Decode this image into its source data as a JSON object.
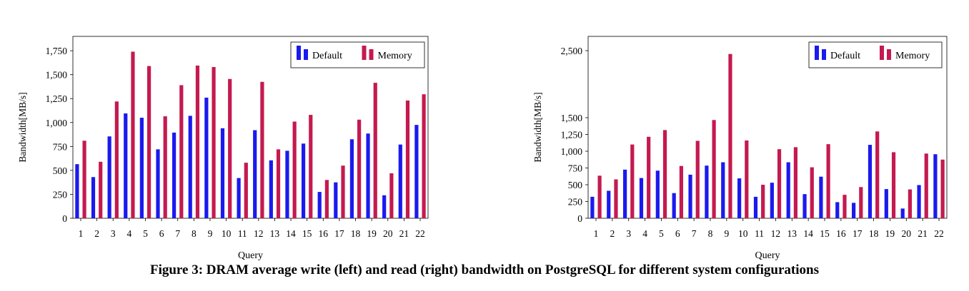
{
  "caption": "Figure 3: DRAM average write (left) and read (right) bandwidth on PostgreSQL for different system configurations",
  "colors": {
    "Default": "#1a1aee",
    "Memory": "#c41a4f"
  },
  "chart_data": [
    {
      "type": "bar",
      "xlabel": "Query",
      "ylabel": "Bandwidth[MB/s]",
      "ylim": [
        0,
        1900
      ],
      "yticks": [
        0,
        250,
        500,
        750,
        1000,
        1250,
        1500,
        1750
      ],
      "ytick_labels": [
        "0",
        "250",
        "500",
        "750",
        "1,000",
        "1,250",
        "1,500",
        "1,750"
      ],
      "grid": false,
      "legend_position": "top-right",
      "categories": [
        "1",
        "2",
        "3",
        "4",
        "5",
        "6",
        "7",
        "8",
        "9",
        "10",
        "11",
        "12",
        "13",
        "14",
        "15",
        "16",
        "17",
        "18",
        "19",
        "20",
        "21",
        "22"
      ],
      "series": [
        {
          "name": "Default",
          "values": [
            565,
            430,
            855,
            1095,
            1050,
            720,
            895,
            1070,
            1260,
            940,
            420,
            920,
            605,
            705,
            780,
            275,
            375,
            825,
            885,
            240,
            770,
            975
          ]
        },
        {
          "name": "Memory",
          "values": [
            810,
            590,
            1220,
            1740,
            1590,
            1065,
            1390,
            1595,
            1580,
            1455,
            580,
            1425,
            720,
            1010,
            1080,
            400,
            550,
            1030,
            1415,
            470,
            1230,
            1295
          ]
        }
      ]
    },
    {
      "type": "bar",
      "xlabel": "Query",
      "ylabel": "Bandwidth[MB/s]",
      "ylim": [
        0,
        2650
      ],
      "yticks": [
        0,
        250,
        500,
        750,
        1000,
        1250,
        1500,
        2500
      ],
      "ytick_labels": [
        "0",
        "250",
        "500",
        "750",
        "1,000",
        "1,250",
        "1,500",
        "2,500"
      ],
      "grid": false,
      "legend_position": "top-right",
      "categories": [
        "1",
        "2",
        "3",
        "4",
        "5",
        "6",
        "7",
        "8",
        "9",
        "10",
        "11",
        "12",
        "13",
        "14",
        "15",
        "16",
        "17",
        "18",
        "19",
        "20",
        "21",
        "22"
      ],
      "series": [
        {
          "name": "Default",
          "values": [
            320,
            410,
            725,
            600,
            710,
            375,
            650,
            785,
            835,
            595,
            320,
            530,
            835,
            360,
            620,
            240,
            230,
            1095,
            435,
            145,
            495,
            955
          ]
        },
        {
          "name": "Memory",
          "values": [
            635,
            580,
            1100,
            1215,
            1315,
            780,
            1155,
            1465,
            2450,
            1160,
            500,
            1030,
            1060,
            760,
            1105,
            350,
            465,
            1295,
            985,
            430,
            965,
            875
          ]
        }
      ]
    }
  ]
}
